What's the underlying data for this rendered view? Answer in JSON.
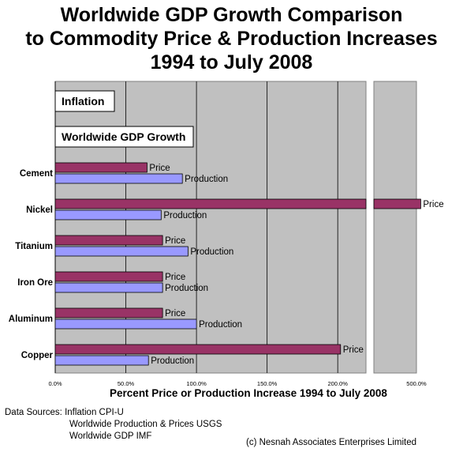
{
  "title": {
    "line1": "Worldwide GDP Growth Comparison",
    "line2": "to Commodity Price & Production Increases",
    "line3": "1994 to July 2008"
  },
  "chart_data": {
    "type": "bar",
    "orientation": "horizontal",
    "title": "Worldwide GDP Growth Comparison to Commodity Price & Production Increases 1994 to July 2008",
    "xlabel": "Percent Price or Production Increase 1994 to July 2008",
    "ylabel": "",
    "xlim": [
      0,
      500
    ],
    "axis_break": [
      220,
      450
    ],
    "x_ticks": [
      "0.0%",
      "50.0%",
      "100.0%",
      "150.0%",
      "200.0%",
      "500.0%"
    ],
    "x_tick_values": [
      0,
      50,
      100,
      150,
      200,
      500
    ],
    "grid": true,
    "boxes": [
      "Inflation",
      "Worldwide GDP Growth"
    ],
    "categories": [
      "Cement",
      "Nickel",
      "Titanium",
      "Iron Ore",
      "Aluminum",
      "Copper"
    ],
    "series": [
      {
        "name": "Price",
        "color": "#993366",
        "values": [
          65,
          505,
          76,
          76,
          76,
          202
        ]
      },
      {
        "name": "Production",
        "color": "#9999ff",
        "values": [
          90,
          75,
          94,
          76,
          100,
          66
        ]
      }
    ]
  },
  "sources": {
    "line1": "Data Sources: Inflation CPI-U",
    "line2": "Worldwide Production & Prices USGS",
    "line3": "Worldwide GDP IMF"
  },
  "credit": "(c) Nesnah Associates Enterprises Limited"
}
